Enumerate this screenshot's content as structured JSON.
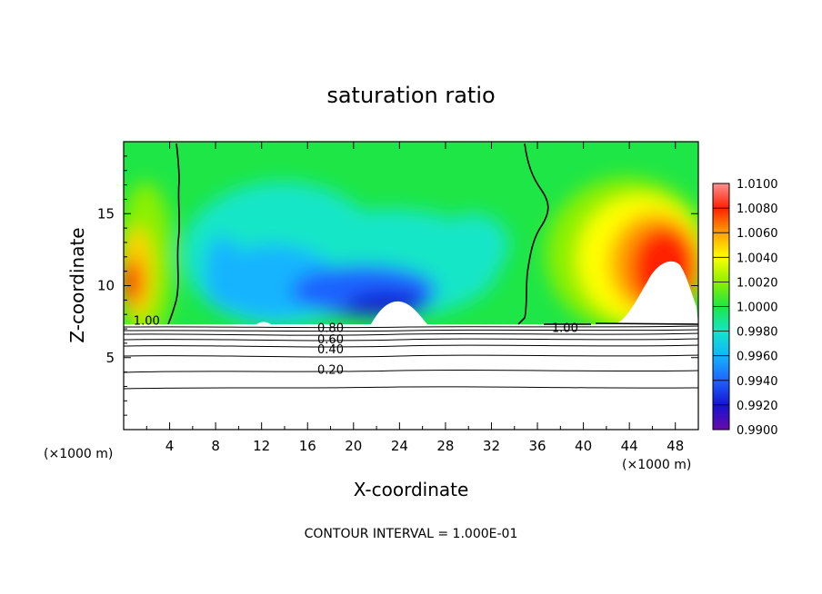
{
  "chart_data": {
    "type": "contour",
    "title": "saturation ratio",
    "xlabel": "X-coordinate",
    "ylabel": "Z-coordinate",
    "x_unit": "(×1000 m)",
    "xlim": [
      0,
      50
    ],
    "ylim": [
      0,
      20
    ],
    "x_ticks": [
      4,
      8,
      12,
      16,
      20,
      24,
      28,
      32,
      36,
      40,
      44,
      48
    ],
    "y_ticks": [
      5,
      10,
      15
    ],
    "colorbar": {
      "min": 0.99,
      "max": 1.01,
      "ticks": [
        "1.0100",
        "1.0080",
        "1.0060",
        "1.0040",
        "1.0020",
        "1.0000",
        "0.9980",
        "0.9960",
        "0.9940",
        "0.9920",
        "0.9900"
      ],
      "colors": [
        "#6a0aa8",
        "#1414d2",
        "#1e64ff",
        "#12b4ff",
        "#12e6c8",
        "#1ee646",
        "#8cf000",
        "#ffff00",
        "#ffa000",
        "#ff2000",
        "#ff9090"
      ]
    },
    "contour_labels": [
      {
        "text": "1.00",
        "x": 2.0,
        "y": 7.6
      },
      {
        "text": "1.00",
        "x": 38.4,
        "y": 7.1
      },
      {
        "text": "0.80",
        "x": 18.0,
        "y": 7.1
      },
      {
        "text": "0.60",
        "x": 18.0,
        "y": 6.3
      },
      {
        "text": "0.40",
        "x": 18.0,
        "y": 5.6
      },
      {
        "text": "0.20",
        "x": 18.0,
        "y": 4.2
      }
    ],
    "footer": "CONTOUR INTERVAL = 1.000E-01"
  }
}
